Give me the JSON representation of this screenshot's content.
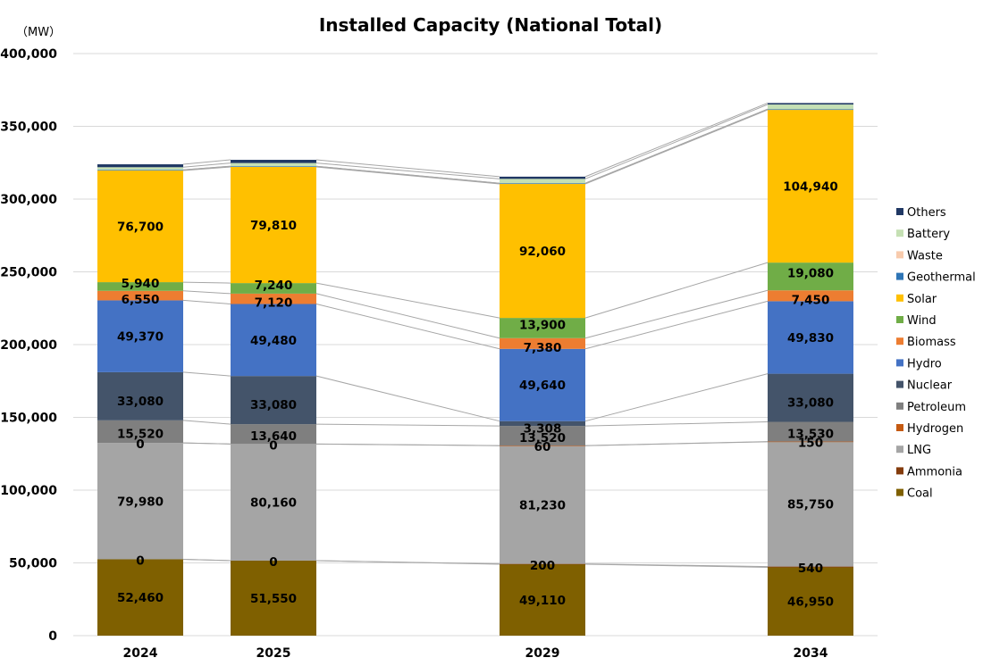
{
  "chart_data": {
    "type": "bar",
    "stacked": true,
    "title": "Installed Capacity (National Total)",
    "ylabel": "（MW）",
    "xlabel": "",
    "categories": [
      "2024",
      "2025",
      "2029",
      "2034"
    ],
    "ylim": [
      0,
      400000
    ],
    "yticks": [
      0,
      50000,
      100000,
      150000,
      200000,
      250000,
      300000,
      350000,
      400000
    ],
    "ytick_labels": [
      "0",
      "50,000",
      "100,000",
      "150,000",
      "200,000",
      "250,000",
      "300,000",
      "350,000",
      "400,000"
    ],
    "grid": true,
    "legend_position": "right",
    "series": [
      {
        "name": "Coal",
        "color": "#7f6000",
        "values": [
          52460,
          51550,
          49110,
          46950
        ],
        "labels": [
          "52,460",
          "51,550",
          "49,110",
          "46,950"
        ]
      },
      {
        "name": "Ammonia",
        "color": "#843c0c",
        "values": [
          0,
          0,
          200,
          540
        ],
        "labels": [
          "0",
          "0",
          "200",
          "540"
        ]
      },
      {
        "name": "LNG",
        "color": "#a5a5a5",
        "values": [
          79980,
          80160,
          81230,
          85750
        ],
        "labels": [
          "79,980",
          "80,160",
          "81,230",
          "85,750"
        ]
      },
      {
        "name": "Hydrogen",
        "color": "#c55a11",
        "values": [
          0,
          0,
          60,
          150
        ],
        "labels": [
          "0",
          "0",
          "60",
          "150"
        ]
      },
      {
        "name": "Petroleum",
        "color": "#7f7f7f",
        "values": [
          15520,
          13640,
          13520,
          13530
        ],
        "labels": [
          "15,520",
          "13,640",
          "13,520",
          "13,530"
        ]
      },
      {
        "name": "Nuclear",
        "color": "#44546a",
        "values": [
          33080,
          33080,
          3308,
          33080
        ],
        "labels": [
          "33,080",
          "33,080",
          "3,308",
          "33,080"
        ]
      },
      {
        "name": "Hydro",
        "color": "#4472c4",
        "values": [
          49370,
          49480,
          49640,
          49830
        ],
        "labels": [
          "49,370",
          "49,480",
          "49,640",
          "49,830"
        ]
      },
      {
        "name": "Biomass",
        "color": "#ed7d31",
        "values": [
          6550,
          7120,
          7380,
          7450
        ],
        "labels": [
          "6,550",
          "7,120",
          "7,380",
          "7,450"
        ]
      },
      {
        "name": "Wind",
        "color": "#70ad47",
        "values": [
          5940,
          7240,
          13900,
          19080
        ],
        "labels": [
          "5,940",
          "7,240",
          "13,900",
          "19,080"
        ]
      },
      {
        "name": "Solar",
        "color": "#ffc000",
        "values": [
          76700,
          79810,
          92060,
          104940
        ],
        "labels": [
          "76,700",
          "79,810",
          "92,060",
          "104,940"
        ]
      },
      {
        "name": "Geothermal",
        "color": "#2e75b6",
        "values": [
          500,
          500,
          500,
          500
        ],
        "labels": [
          "",
          "",
          "",
          ""
        ]
      },
      {
        "name": "Waste",
        "color": "#f8cbad",
        "values": [
          0,
          0,
          0,
          0
        ],
        "labels": [
          "",
          "",
          "",
          ""
        ]
      },
      {
        "name": "Battery",
        "color": "#c5e0b4",
        "values": [
          1800,
          2200,
          3000,
          3200
        ],
        "labels": [
          "",
          "",
          "",
          ""
        ]
      },
      {
        "name": "Others",
        "color": "#203864",
        "values": [
          2000,
          2200,
          1500,
          1000
        ],
        "labels": [
          "",
          "",
          "",
          ""
        ]
      }
    ],
    "legend_order": [
      "Others",
      "Battery",
      "Waste",
      "Geothermal",
      "Solar",
      "Wind",
      "Biomass",
      "Hydro",
      "Nuclear",
      "Petroleum",
      "Hydrogen",
      "LNG",
      "Ammonia",
      "Coal"
    ]
  }
}
